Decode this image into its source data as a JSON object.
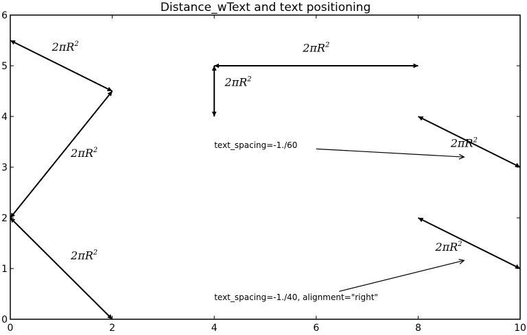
{
  "chart_data": {
    "type": "annotated-arrows",
    "title": "Distance_wText and text positioning",
    "xlim": [
      0,
      10
    ],
    "ylim": [
      0,
      6
    ],
    "xticks": [
      "0",
      "2",
      "4",
      "6",
      "8",
      "10"
    ],
    "yticks": [
      "0",
      "1",
      "2",
      "3",
      "4",
      "5",
      "6"
    ],
    "grid": false,
    "distance_arrows": [
      {
        "from": [
          0,
          5.5
        ],
        "to": [
          2,
          4.5
        ],
        "label": "2πR²",
        "label_at": [
          1.08,
          5.3
        ]
      },
      {
        "from": [
          2,
          4.5
        ],
        "to": [
          0,
          2
        ],
        "label": "2πR²",
        "label_at": [
          1.45,
          3.2
        ]
      },
      {
        "from": [
          0,
          2
        ],
        "to": [
          2,
          0
        ],
        "label": "2πR²",
        "label_at": [
          1.45,
          1.18
        ]
      },
      {
        "from": [
          4,
          5
        ],
        "to": [
          8,
          5
        ],
        "label": "2πR²",
        "label_at": [
          6.0,
          5.28
        ]
      },
      {
        "from": [
          4,
          5
        ],
        "to": [
          4,
          4
        ],
        "label": "2πR²",
        "label_at": [
          4.47,
          4.6
        ]
      },
      {
        "from": [
          8,
          4
        ],
        "to": [
          10,
          3
        ],
        "label": "2πR²",
        "label_at": [
          8.9,
          3.4
        ]
      },
      {
        "from": [
          8,
          2
        ],
        "to": [
          10,
          1
        ],
        "label": "2πR²",
        "label_at": [
          8.6,
          1.35
        ]
      }
    ],
    "annotations": [
      {
        "text": "text_spacing=-1./60",
        "text_at": [
          4.0,
          3.38
        ],
        "arrow_from": [
          6.0,
          3.36
        ],
        "arrow_to": [
          8.9,
          3.2
        ]
      },
      {
        "text": "text_spacing=-1./40, alignment=\"right\"",
        "text_at": [
          4.0,
          0.38
        ],
        "arrow_from": [
          6.45,
          0.55
        ],
        "arrow_to": [
          8.9,
          1.16
        ]
      }
    ]
  }
}
